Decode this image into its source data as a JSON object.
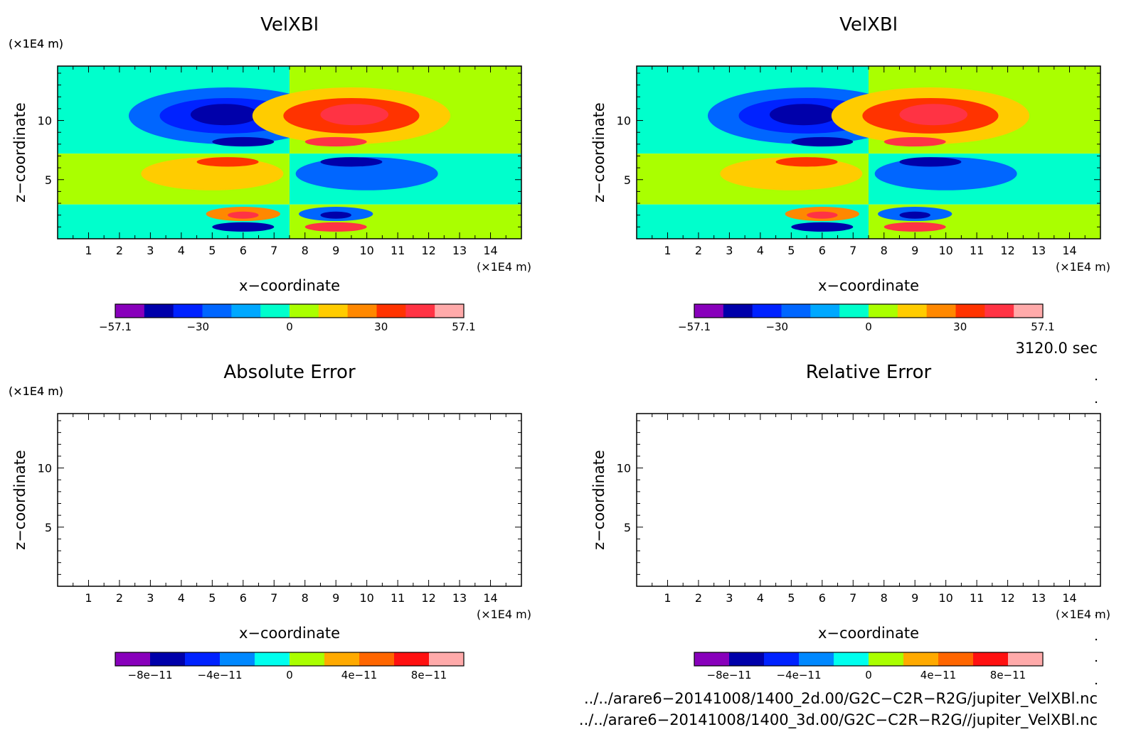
{
  "chart_data": [
    {
      "type": "heatmap",
      "title": "VelXBl",
      "xlabel": "x−coordinate",
      "ylabel": "z−coordinate",
      "x_unit": "(×1E4 m)",
      "y_unit": "(×1E4 m)",
      "xlim": [
        0,
        15
      ],
      "ylim": [
        0,
        14.6
      ],
      "x_ticks": [
        "1",
        "2",
        "3",
        "4",
        "5",
        "6",
        "7",
        "8",
        "9",
        "10",
        "11",
        "12",
        "13",
        "14"
      ],
      "y_ticks": [
        "5",
        "10"
      ],
      "colorbar": {
        "range": [
          -57.1,
          57.1
        ],
        "tick_labels": [
          "−57.1",
          "−30",
          "0",
          "30",
          "57.1"
        ],
        "tick_values": [
          -57.1,
          -30,
          0,
          30,
          57.1
        ],
        "colors": [
          "#8800bb",
          "#0000aa",
          "#0022ff",
          "#0066ff",
          "#00a8ff",
          "#00ffcc",
          "#aaff00",
          "#ffcc00",
          "#ff8800",
          "#ff3300",
          "#ff3344",
          "#ffaaaa"
        ]
      },
      "field": {
        "background": [
          {
            "z_from": 7.2,
            "z_to": 14.6,
            "left": "#00ffcc",
            "right": "#aaff00"
          },
          {
            "z_from": 2.9,
            "z_to": 7.2,
            "left": "#aaff00",
            "right": "#00ffcc"
          },
          {
            "z_from": 0,
            "z_to": 2.9,
            "left": "#00ffcc",
            "right": "#aaff00"
          }
        ],
        "split_x": 7.5,
        "blobs": [
          {
            "x": 5.5,
            "z": 10.4,
            "rx": 3.2,
            "rz": 2.4,
            "value": -20
          },
          {
            "x": 5.5,
            "z": 10.4,
            "rx": 2.2,
            "rz": 1.5,
            "value": -35
          },
          {
            "x": 5.4,
            "z": 10.5,
            "rx": 1.1,
            "rz": 0.9,
            "value": -45
          },
          {
            "x": 9.5,
            "z": 10.4,
            "rx": 3.2,
            "rz": 2.4,
            "value": 15
          },
          {
            "x": 9.5,
            "z": 10.4,
            "rx": 2.2,
            "rz": 1.5,
            "value": 30
          },
          {
            "x": 9.6,
            "z": 10.5,
            "rx": 1.1,
            "rz": 0.9,
            "value": 45
          },
          {
            "x": 6.0,
            "z": 8.2,
            "rx": 1.0,
            "rz": 0.4,
            "value": -40
          },
          {
            "x": 9.0,
            "z": 8.2,
            "rx": 1.0,
            "rz": 0.4,
            "value": 40
          },
          {
            "x": 5.0,
            "z": 5.5,
            "rx": 2.3,
            "rz": 1.4,
            "value": 15
          },
          {
            "x": 5.5,
            "z": 6.5,
            "rx": 1.0,
            "rz": 0.4,
            "value": 35
          },
          {
            "x": 10.0,
            "z": 5.5,
            "rx": 2.3,
            "rz": 1.4,
            "value": -20
          },
          {
            "x": 9.5,
            "z": 6.5,
            "rx": 1.0,
            "rz": 0.4,
            "value": -40
          },
          {
            "x": 6.0,
            "z": 2.1,
            "rx": 1.2,
            "rz": 0.6,
            "value": 20
          },
          {
            "x": 6.0,
            "z": 2.0,
            "rx": 0.5,
            "rz": 0.3,
            "value": 40
          },
          {
            "x": 9.0,
            "z": 2.1,
            "rx": 1.2,
            "rz": 0.6,
            "value": -20
          },
          {
            "x": 9.0,
            "z": 2.0,
            "rx": 0.5,
            "rz": 0.3,
            "value": -40
          },
          {
            "x": 6.0,
            "z": 1.0,
            "rx": 1.0,
            "rz": 0.4,
            "value": -40
          },
          {
            "x": 9.0,
            "z": 1.0,
            "rx": 1.0,
            "rz": 0.4,
            "value": 40
          }
        ]
      }
    },
    {
      "type": "heatmap",
      "title": "VelXBl",
      "xlabel": "x−coordinate",
      "ylabel": "z−coordinate",
      "x_unit": "(×1E4 m)",
      "y_unit": "(×1E4 m)",
      "xlim": [
        0,
        15
      ],
      "ylim": [
        0,
        14.6
      ],
      "x_ticks": [
        "1",
        "2",
        "3",
        "4",
        "5",
        "6",
        "7",
        "8",
        "9",
        "10",
        "11",
        "12",
        "13",
        "14"
      ],
      "y_ticks": [
        "5",
        "10"
      ],
      "colorbar": {
        "range": [
          -57.1,
          57.1
        ],
        "tick_labels": [
          "−57.1",
          "−30",
          "0",
          "30",
          "57.1"
        ],
        "tick_values": [
          -57.1,
          -30,
          0,
          30,
          57.1
        ],
        "colors": [
          "#8800bb",
          "#0000aa",
          "#0022ff",
          "#0066ff",
          "#00a8ff",
          "#00ffcc",
          "#aaff00",
          "#ffcc00",
          "#ff8800",
          "#ff3300",
          "#ff3344",
          "#ffaaaa"
        ]
      },
      "field": "same_as_left"
    },
    {
      "type": "heatmap",
      "title": "Absolute Error",
      "xlabel": "x−coordinate",
      "ylabel": "z−coordinate",
      "x_unit": "(×1E4 m)",
      "y_unit": "(×1E4 m)",
      "xlim": [
        0,
        15
      ],
      "ylim": [
        0,
        14.6
      ],
      "x_ticks": [
        "1",
        "2",
        "3",
        "4",
        "5",
        "6",
        "7",
        "8",
        "9",
        "10",
        "11",
        "12",
        "13",
        "14"
      ],
      "y_ticks": [
        "5",
        "10"
      ],
      "colorbar": {
        "range": [
          -1e-10,
          1e-10
        ],
        "tick_labels": [
          "−8e−11",
          "−4e−11",
          "0",
          "4e−11",
          "8e−11"
        ],
        "tick_values": [
          -8e-11,
          -4e-11,
          0,
          4e-11,
          8e-11
        ],
        "colors": [
          "#8800bb",
          "#0000aa",
          "#0022ff",
          "#0088ff",
          "#00ffee",
          "#aaff00",
          "#ffaa00",
          "#ff6600",
          "#ff1111",
          "#ffaaaa"
        ]
      },
      "field": "empty"
    },
    {
      "type": "heatmap",
      "title": "Relative Error",
      "xlabel": "x−coordinate",
      "ylabel": "z−coordinate",
      "x_unit": "(×1E4 m)",
      "y_unit": "(×1E4 m)",
      "xlim": [
        0,
        15
      ],
      "ylim": [
        0,
        14.6
      ],
      "x_ticks": [
        "1",
        "2",
        "3",
        "4",
        "5",
        "6",
        "7",
        "8",
        "9",
        "10",
        "11",
        "12",
        "13",
        "14"
      ],
      "y_ticks": [
        "5",
        "10"
      ],
      "colorbar": {
        "range": [
          -1e-10,
          1e-10
        ],
        "tick_labels": [
          "−8e−11",
          "−4e−11",
          "0",
          "4e−11",
          "8e−11"
        ],
        "tick_values": [
          -8e-11,
          -4e-11,
          0,
          4e-11,
          8e-11
        ],
        "colors": [
          "#8800bb",
          "#0000aa",
          "#0022ff",
          "#0088ff",
          "#00ffee",
          "#aaff00",
          "#ffaa00",
          "#ff6600",
          "#ff1111",
          "#ffaaaa"
        ]
      },
      "field": "empty"
    }
  ],
  "info": {
    "time": "3120.0 sec",
    "file1": "../../arare6−20141008/1400_2d.00/G2C−C2R−R2G/jupiter_VelXBl.nc",
    "file2": "../../arare6−20141008/1400_3d.00/G2C−C2R−R2G//jupiter_VelXBl.nc"
  }
}
